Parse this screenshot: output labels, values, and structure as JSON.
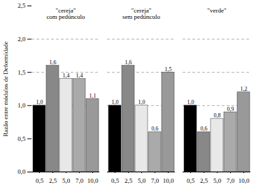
{
  "chart_data": {
    "type": "bar",
    "ylabel": "Razão entre módulos de Deformidade",
    "categories": [
      "\"cereja\"\ncom pedúnculo",
      "\"cereja\"\nsem pedúnculo",
      "\"verde\""
    ],
    "series": [
      {
        "name": "0,5",
        "color": "#000000",
        "values": [
          1.0,
          1.0,
          1.0
        ],
        "value_labels": [
          "1,0",
          "1,0",
          "1,0"
        ]
      },
      {
        "name": "2,5",
        "color": "#888888",
        "values": [
          1.6,
          1.6,
          0.6
        ],
        "value_labels": [
          "1,6",
          "1,6",
          "0,6"
        ]
      },
      {
        "name": "5,0",
        "color": "#e8e8e8",
        "values": [
          1.4,
          1.0,
          0.8
        ],
        "value_labels": [
          "1,4",
          "1,0",
          "0,8"
        ]
      },
      {
        "name": "7,0",
        "color": "#aaaaaa",
        "values": [
          1.4,
          0.6,
          0.9
        ],
        "value_labels": [
          "1,4",
          "0,6",
          "0,9"
        ]
      },
      {
        "name": "10,0",
        "color": "#999999",
        "values": [
          1.1,
          1.5,
          1.2
        ],
        "value_labels": [
          "1,1",
          "1,5",
          "1,2"
        ]
      }
    ],
    "ylim": [
      0.0,
      2.5
    ],
    "yticks": [
      {
        "value": 0.0,
        "label": "0,0"
      },
      {
        "value": 0.5,
        "label": "0,5"
      },
      {
        "value": 1.0,
        "label": "1,0"
      },
      {
        "value": 1.5,
        "label": "1,5"
      },
      {
        "value": 2.0,
        "label": "2,0"
      },
      {
        "value": 2.5,
        "label": "2,5"
      }
    ],
    "dashed_lines": [
      1.0,
      1.5,
      2.0
    ],
    "data_labels": true,
    "grid": false
  }
}
